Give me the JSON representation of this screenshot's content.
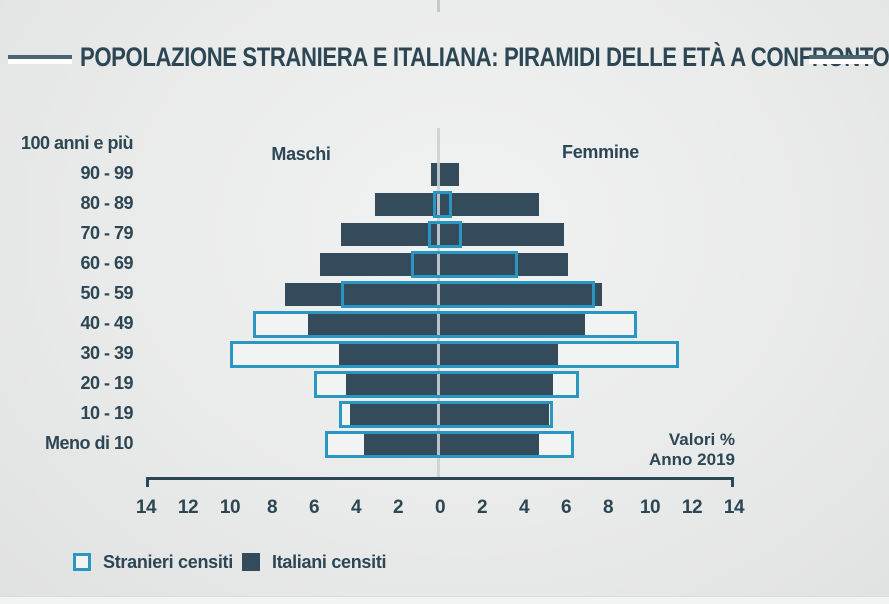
{
  "title": "POPOLAZIONE STRANIERA E ITALIANA: PIRAMIDI DELLE ETÀ A CONFRONTO",
  "labels": {
    "male_side": "Maschi",
    "female_side": "Femmine",
    "note_line1": "Valori %",
    "note_line2": "Anno 2019"
  },
  "legend": {
    "items": [
      {
        "label": "Stranieri censiti",
        "style": "outline"
      },
      {
        "label": "Italiani censiti",
        "style": "fill"
      }
    ]
  },
  "colors": {
    "accent_blue": "#2a97c2",
    "dark_bar": "#344b5b",
    "text": "#2c4654",
    "box_fill": "#f2f4f4"
  },
  "chart_data": {
    "type": "bar",
    "subtype": "population-pyramid",
    "title": "Popolazione straniera e italiana: piramidi delle età a confronto",
    "units": "percent",
    "year_note": "Anno 2019",
    "age_groups": [
      "100 anni e più",
      "90 - 99",
      "80 - 89",
      "70 - 79",
      "60 - 69",
      "50 - 59",
      "40 - 49",
      "30 - 39",
      "20 - 19",
      "10 - 19",
      "Meno di 10"
    ],
    "series": [
      {
        "name": "Italiani censiti",
        "male": [
          0,
          0.45,
          3.1,
          4.7,
          5.7,
          7.4,
          6.3,
          4.8,
          4.5,
          4.3,
          3.6
        ],
        "female": [
          0,
          0.9,
          4.7,
          5.9,
          6.1,
          7.7,
          6.9,
          5.6,
          5.4,
          5.2,
          4.7
        ]
      },
      {
        "name": "Stranieri censiti",
        "male": [
          0,
          0,
          0.35,
          0.55,
          1.4,
          4.7,
          8.9,
          10.0,
          6.0,
          4.8,
          5.5
        ],
        "female": [
          0,
          0,
          0.55,
          1.05,
          3.7,
          7.4,
          9.4,
          11.4,
          6.6,
          5.4,
          6.4
        ]
      }
    ],
    "axis_ticks": [
      14,
      12,
      10,
      8,
      6,
      4,
      2,
      0,
      2,
      4,
      6,
      8,
      10,
      12,
      14
    ],
    "xlim_each_side": [
      0,
      14
    ],
    "grid": false,
    "legend_position": "bottom-left"
  }
}
